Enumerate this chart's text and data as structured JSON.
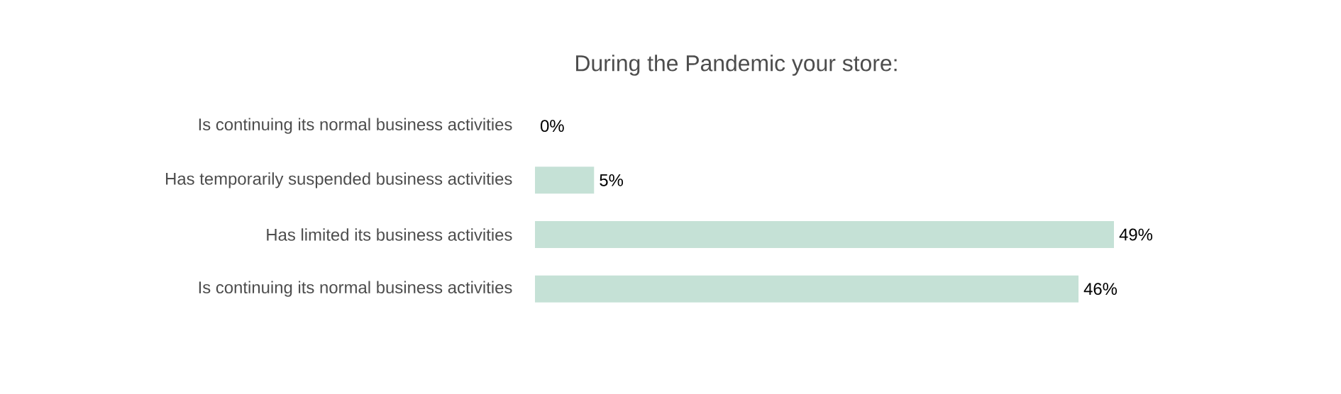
{
  "chart_data": {
    "type": "bar",
    "orientation": "horizontal",
    "title": "During the Pandemic your store:",
    "categories": [
      "Is continuing its normal business activities",
      "Has temporarily suspended business activities",
      "Has limited its business activities",
      "Is continuing its normal business activities"
    ],
    "values": [
      0,
      5,
      49,
      46
    ],
    "value_labels": [
      "0%",
      "5%",
      "49%",
      "46%"
    ],
    "color": "#c5e1d6"
  }
}
